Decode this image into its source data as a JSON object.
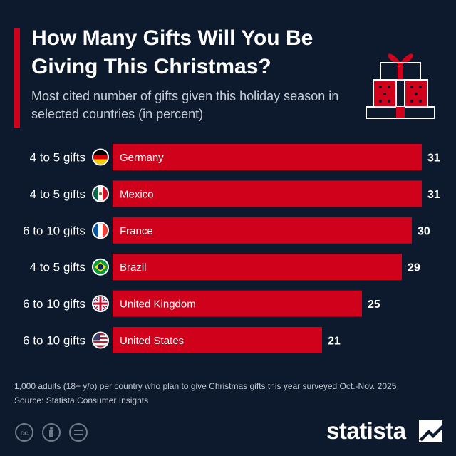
{
  "header": {
    "title": "How Many Gifts Will You Be Giving This Christmas?",
    "subtitle": "Most cited number of gifts given this holiday season in selected countries (in percent)"
  },
  "chart_data": {
    "type": "bar",
    "orientation": "horizontal",
    "categories": [
      "Germany",
      "Mexico",
      "France",
      "Brazil",
      "United Kingdom",
      "United States"
    ],
    "group_labels": [
      "4 to 5 gifts",
      "4 to 5 gifts",
      "6 to 10 gifts",
      "4 to 5 gifts",
      "6 to 10 gifts",
      "6 to 10 gifts"
    ],
    "flags": [
      "germany-flag",
      "mexico-flag",
      "france-flag",
      "brazil-flag",
      "uk-flag",
      "usa-flag"
    ],
    "values": [
      31,
      31,
      30,
      29,
      25,
      21
    ],
    "xlim": [
      0,
      31
    ],
    "bar_color": "#d0021b",
    "grid": false
  },
  "footnote": {
    "line1": "1,000 adults (18+ y/o) per country who plan to give Christmas gifts this year surveyed Oct.-Nov. 2025",
    "line2": "Source: Statista Consumer Insights"
  },
  "brand": {
    "name": "statista"
  },
  "icons": [
    "creative-commons-icon",
    "attribution-icon",
    "no-derivatives-icon",
    "gift-box-icon",
    "statista-logo-icon"
  ],
  "colors": {
    "background": "#0d1a2e",
    "accent": "#d0021b",
    "text": "#ffffff"
  }
}
